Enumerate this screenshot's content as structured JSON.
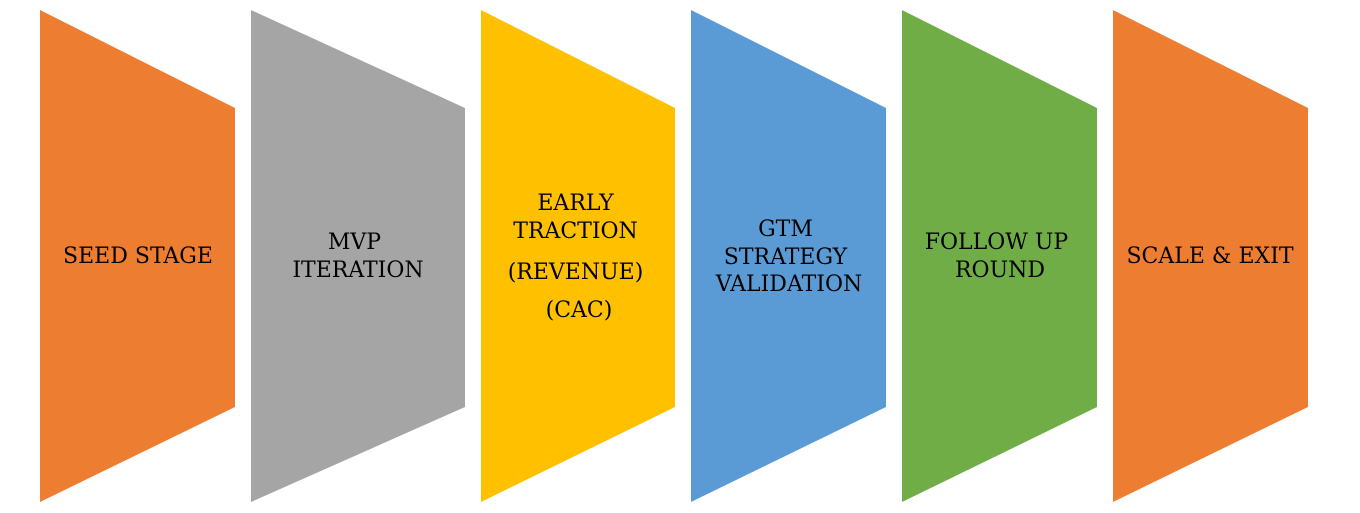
{
  "diagram": {
    "stages": [
      {
        "lines": [
          "SEED STAGE"
        ],
        "color": "#ED7D31"
      },
      {
        "lines": [
          "MVP",
          "ITERATION"
        ],
        "color": "#A5A5A5"
      },
      {
        "lines": [
          "EARLY",
          "TRACTION",
          "(REVENUE)",
          "(CAC)"
        ],
        "color": "#FFC000"
      },
      {
        "lines": [
          "GTM",
          "STRATEGY",
          "VALIDATION"
        ],
        "color": "#5B9BD5"
      },
      {
        "lines": [
          "FOLLOW UP",
          "ROUND"
        ],
        "color": "#70AD47"
      },
      {
        "lines": [
          "SCALE & EXIT"
        ],
        "color": "#ED7D31"
      }
    ]
  }
}
